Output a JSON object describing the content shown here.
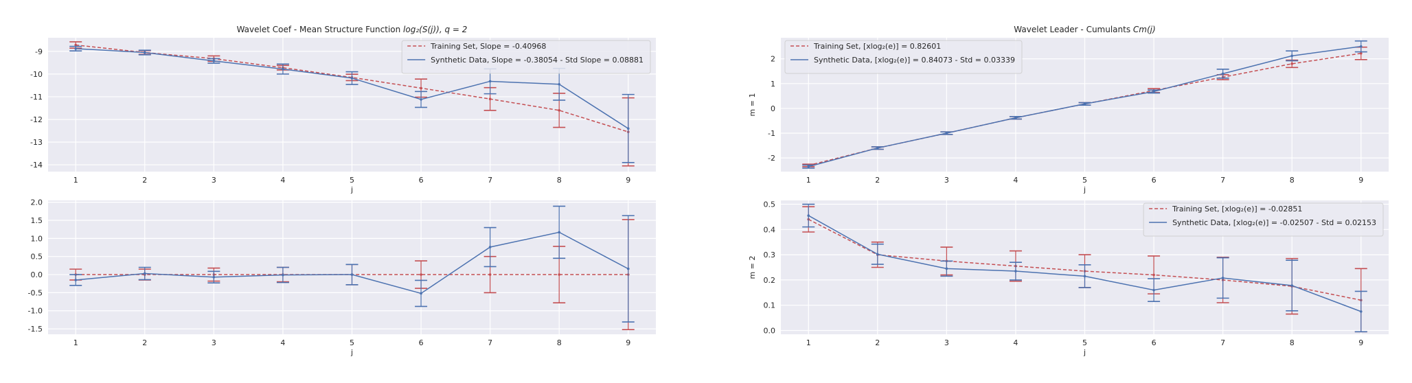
{
  "chart_data": [
    {
      "type": "line",
      "title": "Wavelet Coef - Mean Structure Function log₂(S(j)), q = 2",
      "title_plain": "Wavelet Coef - Mean Structure Function ",
      "title_math": "log₂(S(j)), q = 2",
      "xlabel": "j",
      "ylabel": "",
      "x": [
        1,
        2,
        3,
        4,
        5,
        6,
        7,
        8,
        9
      ],
      "xlim": [
        0.6,
        9.4
      ],
      "ylim": [
        -14.3,
        -8.4
      ],
      "yticks": [
        -9,
        -10,
        -11,
        -12,
        -13,
        -14
      ],
      "grid": true,
      "legend": "top-right",
      "series": [
        {
          "name": "Training Set, Slope = -0.40968",
          "color": "#c44e52",
          "dash": true,
          "values": [
            -8.72,
            -9.05,
            -9.32,
            -9.72,
            -10.15,
            -10.62,
            -11.1,
            -11.6,
            -12.55
          ],
          "err": [
            0.14,
            0.08,
            0.12,
            0.1,
            0.14,
            0.4,
            0.5,
            0.75,
            1.5
          ]
        },
        {
          "name": "Synthetic Data, Slope = -0.38054 - Std Slope = 0.08881",
          "color": "#4c72b0",
          "dash": false,
          "values": [
            -8.88,
            -9.05,
            -9.42,
            -9.78,
            -10.18,
            -11.12,
            -10.32,
            -10.45,
            -12.4
          ],
          "err": [
            0.1,
            0.1,
            0.1,
            0.22,
            0.28,
            0.35,
            0.55,
            0.7,
            1.5
          ]
        }
      ]
    },
    {
      "type": "line",
      "title": "",
      "xlabel": "j",
      "ylabel": "",
      "x": [
        1,
        2,
        3,
        4,
        5,
        6,
        7,
        8,
        9
      ],
      "xlim": [
        0.6,
        9.4
      ],
      "ylim": [
        -1.65,
        2.05
      ],
      "yticks": [
        2.0,
        1.5,
        1.0,
        0.5,
        0.0,
        -0.5,
        -1.0,
        -1.5
      ],
      "ytick_format": 1,
      "grid": true,
      "legend": "none",
      "series": [
        {
          "name": "",
          "color": "#c44e52",
          "dash": true,
          "values": [
            0,
            0,
            0,
            0,
            0,
            0,
            0,
            0,
            0
          ],
          "err": [
            0.15,
            0.15,
            0.18,
            0.2,
            0.28,
            0.38,
            0.5,
            0.78,
            1.52
          ]
        },
        {
          "name": "",
          "color": "#4c72b0",
          "dash": false,
          "values": [
            -0.15,
            0.03,
            -0.07,
            -0.01,
            0.0,
            -0.52,
            0.76,
            1.17,
            0.16
          ],
          "err": [
            0.15,
            0.17,
            0.16,
            0.21,
            0.28,
            0.36,
            0.54,
            0.72,
            1.47
          ]
        }
      ]
    },
    {
      "type": "line",
      "title": "Wavelet Leader - Cumulants Cm(j)",
      "title_plain": "Wavelet Leader - Cumulants ",
      "title_math": "Cm(j)",
      "xlabel": "j",
      "ylabel": "m = 1",
      "x": [
        1,
        2,
        3,
        4,
        5,
        6,
        7,
        8,
        9
      ],
      "xlim": [
        0.6,
        9.4
      ],
      "ylim": [
        -2.55,
        2.85
      ],
      "yticks": [
        2,
        1,
        0,
        -1,
        -2
      ],
      "grid": true,
      "legend": "top-left",
      "series": [
        {
          "name": "Training Set, [xlog₂(e)] = 0.82601",
          "color": "#c44e52",
          "dash": true,
          "values": [
            -2.3,
            -1.6,
            -1.0,
            -0.38,
            0.18,
            0.72,
            1.26,
            1.8,
            2.22
          ],
          "err": [
            0.05,
            0.05,
            0.05,
            0.05,
            0.05,
            0.08,
            0.1,
            0.15,
            0.25
          ]
        },
        {
          "name": "Synthetic Data, [xlog₂(e)] = 0.84073 - Std = 0.03339",
          "color": "#4c72b0",
          "dash": false,
          "values": [
            -2.35,
            -1.6,
            -1.0,
            -0.38,
            0.18,
            0.68,
            1.4,
            2.12,
            2.5
          ],
          "err": [
            0.06,
            0.05,
            0.05,
            0.05,
            0.05,
            0.06,
            0.18,
            0.2,
            0.22
          ]
        }
      ]
    },
    {
      "type": "line",
      "title": "",
      "xlabel": "j",
      "ylabel": "m = 2",
      "x": [
        1,
        2,
        3,
        4,
        5,
        6,
        7,
        8,
        9
      ],
      "xlim": [
        0.6,
        9.4
      ],
      "ylim": [
        -0.015,
        0.515
      ],
      "yticks": [
        0.5,
        0.4,
        0.3,
        0.2,
        0.1,
        0.0
      ],
      "ytick_format": 1,
      "grid": true,
      "legend": "top-right",
      "series": [
        {
          "name": "Training Set, [xlog₂(e)] = -0.02851",
          "color": "#c44e52",
          "dash": true,
          "values": [
            0.44,
            0.3,
            0.275,
            0.255,
            0.235,
            0.22,
            0.2,
            0.175,
            0.12
          ],
          "err": [
            0.05,
            0.05,
            0.055,
            0.06,
            0.065,
            0.075,
            0.09,
            0.11,
            0.125
          ]
        },
        {
          "name": "Synthetic Data, [xlog₂(e)] = -0.02507 - Std = 0.02153",
          "color": "#4c72b0",
          "dash": false,
          "values": [
            0.455,
            0.302,
            0.245,
            0.235,
            0.215,
            0.16,
            0.208,
            0.178,
            0.075
          ],
          "err": [
            0.045,
            0.04,
            0.03,
            0.035,
            0.045,
            0.045,
            0.08,
            0.1,
            0.08
          ]
        }
      ]
    }
  ]
}
